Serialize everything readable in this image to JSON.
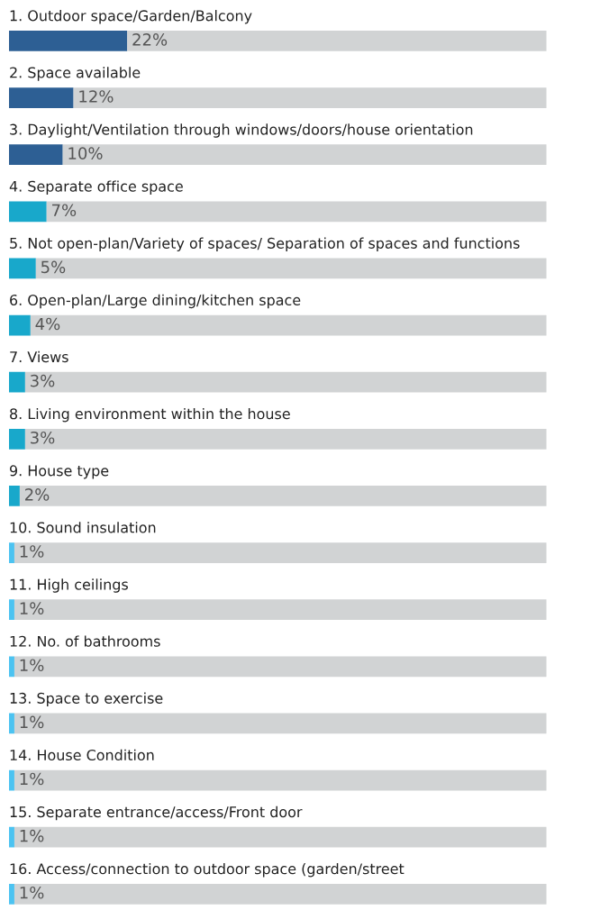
{
  "chart_data": {
    "type": "bar",
    "orientation": "horizontal",
    "stacked": true,
    "categories": [
      "1. Outdoor space/Garden/Balcony",
      "2. Space available",
      "3. Daylight/Ventilation through windows/doors/house orientation",
      "4. Separate office space",
      "5. Not open-plan/Variety of spaces/ Separation of spaces and functions",
      "6. Open-plan/Large dining/kitchen space",
      "7. Views",
      "8. Living environment within the house",
      "9. House type",
      "10. Sound insulation",
      "11. High ceilings",
      "12. No. of bathrooms",
      "13. Space to exercise",
      "14. House Condition",
      "15. Separate entrance/access/Front door",
      "16. Access/connection to outdoor space (garden/street"
    ],
    "series": [
      {
        "colors": [
          "#2d5f94",
          "#2d5f94",
          "#2d5f94",
          "#18a8cb",
          "#18a8cb",
          "#18a8cb",
          "#18a8cb",
          "#18a8cb",
          "#18a8cb",
          "#4cc3f1",
          "#4cc3f1",
          "#4cc3f1",
          "#4cc3f1",
          "#4cc3f1",
          "#4cc3f1",
          "#4cc3f1"
        ],
        "values": [
          22,
          12,
          10,
          7,
          5,
          4,
          3,
          3,
          2,
          1,
          1,
          1,
          1,
          1,
          1,
          1
        ],
        "value_labels": [
          "22%",
          "12%",
          "10%",
          "7%",
          "5%",
          "4%",
          "3%",
          "3%",
          "2%",
          "1%",
          "1%",
          "1%",
          "1%",
          "1%",
          "1%",
          "1%"
        ]
      },
      {
        "color": "#d1d3d4",
        "values": [
          78,
          88,
          90,
          93,
          95,
          96,
          97,
          97,
          98,
          99,
          99,
          99,
          99,
          99,
          99,
          99
        ]
      }
    ]
  }
}
